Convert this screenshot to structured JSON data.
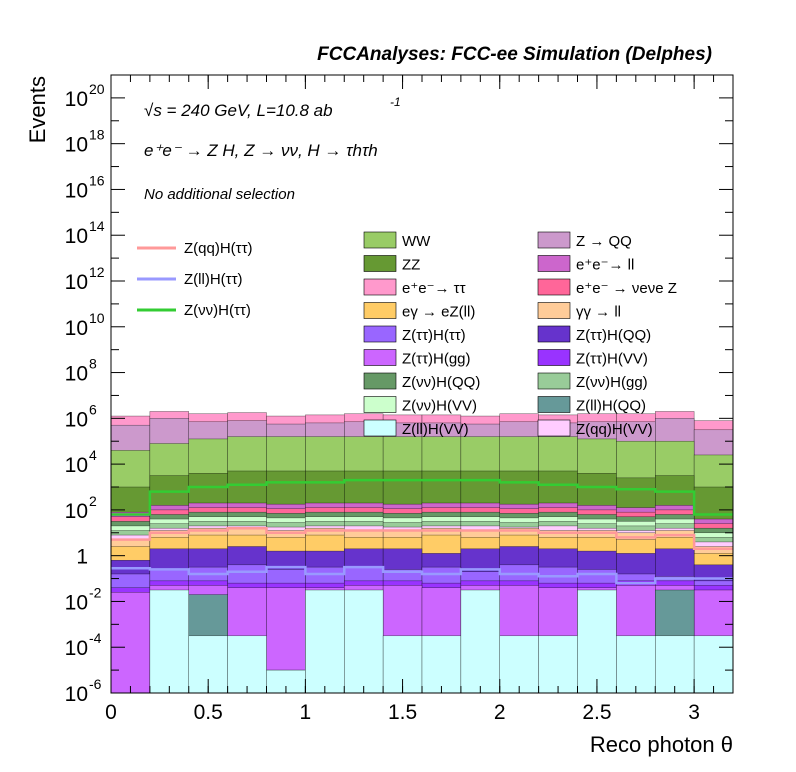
{
  "header": {
    "title": "FCCAnalyses: FCC-ee Simulation (Delphes)"
  },
  "annotations": {
    "line1": "√s = 240 GeV, L=10.8 ab",
    "line1_sup": "-1",
    "line2": "e⁺e⁻ → Z H, Z → νν, H → τhτh",
    "line3": "No additional selection"
  },
  "colors": {
    "ww": "#99cc66",
    "zz": "#669933",
    "zqq": "#cc99cc",
    "ee_ll": "#cc66cc",
    "ee_tautau": "#ff99cc",
    "ee_nunuZ": "#ff6699",
    "egamma": "#ffcc66",
    "gammagamma": "#ffcc99",
    "tt_tt": "#9966ff",
    "tt_qq": "#6633cc",
    "tt_gg": "#cc66ff",
    "tt_vv": "#9933ff",
    "vv_qq": "#669966",
    "vv_gg": "#99cc99",
    "vv_vv": "#ccffcc",
    "ll_qq": "#669999",
    "ll_vv": "#ccffff",
    "qq_vv": "#ffccff",
    "sig_qq": "#ff9999",
    "sig_ll": "#9999ff",
    "sig_vv": "#33cc33"
  },
  "chart_data": {
    "type": "area",
    "title": "FCCAnalyses: FCC-ee Simulation (Delphes)",
    "xlabel": "Reco photon θ",
    "ylabel": "Events",
    "y_scale": "log",
    "xlim": [
      0,
      3.2
    ],
    "ylim_exponent": [
      -6,
      21
    ],
    "bin_edges": [
      0.0,
      0.2,
      0.4,
      0.6,
      0.8,
      1.0,
      1.2,
      1.4,
      1.6,
      1.8,
      2.0,
      2.2,
      2.4,
      2.6,
      2.8,
      3.0,
      3.2
    ],
    "x_ticks": [
      "0",
      "0.5",
      "1",
      "1.5",
      "2",
      "2.5",
      "3"
    ],
    "x_tick_values": [
      0,
      0.5,
      1,
      1.5,
      2,
      2.5,
      3
    ],
    "y_ticks": [
      {
        "exp": -6,
        "base": "10",
        "sup": "-6"
      },
      {
        "exp": -4,
        "base": "10",
        "sup": "-4"
      },
      {
        "exp": -2,
        "base": "10",
        "sup": "-2"
      },
      {
        "exp": 0,
        "base": "1",
        "sup": ""
      },
      {
        "exp": 2,
        "base": "10",
        "sup": "2"
      },
      {
        "exp": 4,
        "base": "10",
        "sup": "4"
      },
      {
        "exp": 6,
        "base": "10",
        "sup": "6"
      },
      {
        "exp": 8,
        "base": "10",
        "sup": "8"
      },
      {
        "exp": 10,
        "base": "10",
        "sup": "10"
      },
      {
        "exp": 12,
        "base": "10",
        "sup": "12"
      },
      {
        "exp": 14,
        "base": "10",
        "sup": "14"
      },
      {
        "exp": 16,
        "base": "10",
        "sup": "16"
      },
      {
        "exp": 18,
        "base": "10",
        "sup": "18"
      },
      {
        "exp": 20,
        "base": "10",
        "sup": "20"
      }
    ],
    "stack_note": "cumulative log10 top of each stacked background layer, bottom to top",
    "stack": [
      {
        "name": "Z(ll)H(VV)",
        "color_key": "ll_vv",
        "top_log10": [
          -6,
          -1.5,
          -3.5,
          -3.5,
          -5,
          -1.5,
          -1.5,
          -3.5,
          -3.5,
          -1.5,
          -3.5,
          -3.5,
          -1.5,
          -3.5,
          -3.5,
          -3.5
        ]
      },
      {
        "name": "Z(ll)H(QQ)",
        "color_key": "ll_qq",
        "top_log10": [
          -6,
          -5,
          -1.7,
          -6,
          -5,
          -6,
          -6,
          -6,
          -6,
          -6,
          -6,
          -6,
          -6,
          -6,
          -1.5,
          -6
        ]
      },
      {
        "name": "Z(ττ)H(gg)",
        "color_key": "tt_gg",
        "top_log10": [
          -1.6,
          -1.3,
          -1.3,
          -1.4,
          -1.4,
          -1.4,
          -1.3,
          -1.3,
          -1.4,
          -1.3,
          -1.3,
          -1.4,
          -1.4,
          -1.3,
          -1.3,
          -1.5
        ]
      },
      {
        "name": "Z(ττ)H(VV)",
        "color_key": "tt_vv",
        "top_log10": [
          -1.4,
          -1.1,
          -1.1,
          -1.2,
          -1.2,
          -1.2,
          -1.1,
          -1.1,
          -1.2,
          -1.1,
          -1.1,
          -1.2,
          -1.2,
          -1.1,
          -1.1,
          -1.3
        ]
      },
      {
        "name": "Z(ττ)H(ττ)",
        "color_key": "tt_tt",
        "top_log10": [
          -0.8,
          -0.6,
          -0.5,
          -0.4,
          -0.6,
          -0.5,
          -0.5,
          -0.6,
          -0.5,
          -0.7,
          -0.4,
          -0.5,
          -0.6,
          -0.8,
          -0.9,
          -1.1
        ]
      },
      {
        "name": "Z(ττ)H(QQ)",
        "color_key": "tt_qq",
        "top_log10": [
          -0.2,
          0.3,
          0.3,
          0.4,
          0.2,
          0.2,
          0.3,
          0.3,
          0.1,
          0.3,
          0.4,
          0.3,
          0.2,
          0.1,
          0.3,
          -0.4
        ]
      },
      {
        "name": "eγ → eZ(ll)",
        "color_key": "egamma",
        "top_log10": [
          0.4,
          0.8,
          0.9,
          0.9,
          0.8,
          0.9,
          0.8,
          0.8,
          0.9,
          0.8,
          0.9,
          0.8,
          0.8,
          0.7,
          0.8,
          0.1
        ]
      },
      {
        "name": "γγ → ll",
        "color_key": "gammagamma",
        "top_log10": [
          0.7,
          1.1,
          1.2,
          1.2,
          1.1,
          1.2,
          1.1,
          1.1,
          1.2,
          1.1,
          1.2,
          1.1,
          1.1,
          1.0,
          1.1,
          0.4
        ]
      },
      {
        "name": "Z(qq)H(VV)",
        "color_key": "qq_vv",
        "top_log10": [
          0.9,
          1.2,
          1.3,
          1.3,
          1.25,
          1.3,
          1.3,
          1.25,
          1.3,
          1.3,
          1.25,
          1.3,
          1.2,
          1.1,
          1.2,
          0.6
        ]
      },
      {
        "name": "Z(νν)H(gg)",
        "color_key": "vv_gg",
        "top_log10": [
          1.1,
          1.4,
          1.5,
          1.5,
          1.45,
          1.5,
          1.5,
          1.45,
          1.5,
          1.5,
          1.45,
          1.5,
          1.4,
          1.3,
          1.4,
          0.8
        ]
      },
      {
        "name": "Z(νν)H(VV)",
        "color_key": "vv_vv",
        "top_log10": [
          1.3,
          1.6,
          1.7,
          1.7,
          1.65,
          1.7,
          1.7,
          1.65,
          1.7,
          1.7,
          1.65,
          1.7,
          1.6,
          1.5,
          1.6,
          1.0
        ]
      },
      {
        "name": "Z(νν)H(QQ)",
        "color_key": "vv_qq",
        "top_log10": [
          1.5,
          1.8,
          1.9,
          1.9,
          1.85,
          1.9,
          1.9,
          1.85,
          1.9,
          1.9,
          1.85,
          1.9,
          1.8,
          1.7,
          1.8,
          1.2
        ]
      },
      {
        "name": "e⁺e⁻ → νeνe Z",
        "color_key": "ee_nunuZ",
        "top_log10": [
          1.7,
          2.0,
          2.1,
          2.1,
          2.05,
          2.1,
          2.1,
          2.05,
          2.1,
          2.1,
          2.05,
          2.1,
          2.0,
          1.9,
          2.0,
          1.4
        ]
      },
      {
        "name": "e⁺e⁻→ ll",
        "color_key": "ee_ll",
        "top_log10": [
          1.9,
          2.2,
          2.3,
          2.3,
          2.25,
          2.3,
          2.3,
          2.25,
          2.3,
          2.3,
          2.25,
          2.3,
          2.2,
          2.1,
          2.2,
          1.6
        ]
      },
      {
        "name": "ZZ",
        "color_key": "zz",
        "top_log10": [
          3.0,
          3.5,
          3.6,
          3.7,
          3.7,
          3.7,
          3.7,
          3.7,
          3.7,
          3.7,
          3.7,
          3.7,
          3.6,
          3.4,
          3.5,
          3.0
        ]
      },
      {
        "name": "WW",
        "color_key": "ww",
        "top_log10": [
          4.6,
          4.9,
          5.1,
          5.2,
          5.2,
          5.2,
          5.2,
          5.2,
          5.2,
          5.2,
          5.2,
          5.2,
          5.1,
          5.0,
          5.0,
          4.4
        ]
      },
      {
        "name": "Z → QQ",
        "color_key": "zqq",
        "top_log10": [
          5.7,
          6.0,
          5.85,
          5.9,
          5.75,
          5.8,
          5.85,
          5.8,
          5.8,
          5.75,
          5.85,
          5.8,
          5.85,
          5.85,
          6.0,
          5.5
        ]
      },
      {
        "name": "e⁺e⁻→ ττ",
        "color_key": "ee_tautau",
        "top_log10": [
          6.1,
          6.3,
          6.2,
          6.25,
          6.1,
          6.15,
          6.2,
          6.15,
          6.15,
          6.1,
          6.2,
          6.15,
          6.2,
          6.2,
          6.3,
          5.9
        ]
      }
    ],
    "series": [
      {
        "name": "Z(qq)H(ττ)",
        "color_key": "sig_qq",
        "values_log10": [
          0.7,
          1.0,
          1.1,
          1.2,
          1.0,
          1.1,
          1.1,
          1.1,
          1.1,
          1.1,
          1.1,
          1.0,
          1.0,
          0.8,
          0.9,
          0.3
        ]
      },
      {
        "name": "Z(ll)H(ττ)",
        "color_key": "sig_ll",
        "values_log10": [
          -0.55,
          -0.6,
          -0.8,
          -0.7,
          -0.5,
          -0.8,
          -0.5,
          -0.7,
          -0.8,
          -0.6,
          -0.8,
          -0.9,
          -0.8,
          -1.2,
          -1.0,
          -1.0
        ]
      },
      {
        "name": "Z(νν)H(ττ)",
        "color_key": "sig_vv",
        "values_log10": [
          1.8,
          2.8,
          3.0,
          3.1,
          3.2,
          3.2,
          3.3,
          3.3,
          3.3,
          3.3,
          3.2,
          3.1,
          3.0,
          2.9,
          2.8,
          1.8
        ]
      }
    ],
    "legend_signal": [
      "Z(qq)H(ττ)",
      "Z(ll)H(ττ)",
      "Z(νν)H(ττ)"
    ],
    "legend_background": [
      [
        "WW",
        "Z → QQ"
      ],
      [
        "ZZ",
        "e⁺e⁻→ ll"
      ],
      [
        "e⁺e⁻→ ττ",
        "e⁺e⁻ → νeνe Z"
      ],
      [
        "eγ → eZ(ll)",
        "γγ → ll"
      ],
      [
        "Z(ττ)H(ττ)",
        "Z(ττ)H(QQ)"
      ],
      [
        "Z(ττ)H(gg)",
        "Z(ττ)H(VV)"
      ],
      [
        "Z(νν)H(QQ)",
        "Z(νν)H(gg)"
      ],
      [
        "Z(νν)H(VV)",
        "Z(ll)H(QQ)"
      ],
      [
        "Z(ll)H(VV)",
        "Z(qq)H(VV)"
      ]
    ],
    "legend_placement": "upper-middle",
    "grid": false
  }
}
